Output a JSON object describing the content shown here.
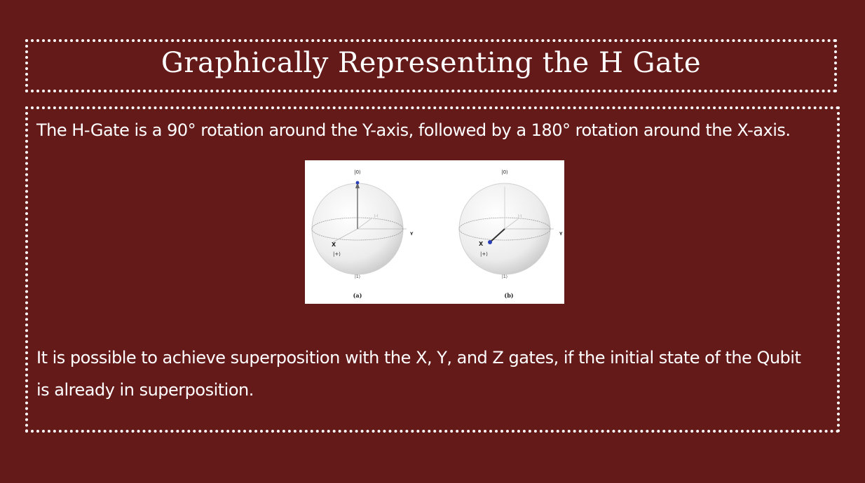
{
  "slide": {
    "title": "Graphically Representing the H Gate",
    "paragraph1": "The H-Gate is a 90° rotation around the Y-axis, followed by a 180° rotation around the X-axis.",
    "paragraph2": "It is possible to achieve superposition with the X, Y, and Z gates, if the initial state of the Qubit is already in superposition."
  },
  "figure": {
    "panel_a": {
      "top_label": "|0⟩",
      "bottom_label": "|1⟩",
      "x_label": "X",
      "y_label": "Y",
      "plus_label": "|+⟩",
      "minus_label": "|-⟩",
      "caption": "(a)"
    },
    "panel_b": {
      "top_label": "|0⟩",
      "bottom_label": "|1⟩",
      "x_label": "X",
      "y_label": "Y",
      "plus_label": "|+⟩",
      "minus_label": "|-⟩",
      "caption": "(b)"
    }
  }
}
